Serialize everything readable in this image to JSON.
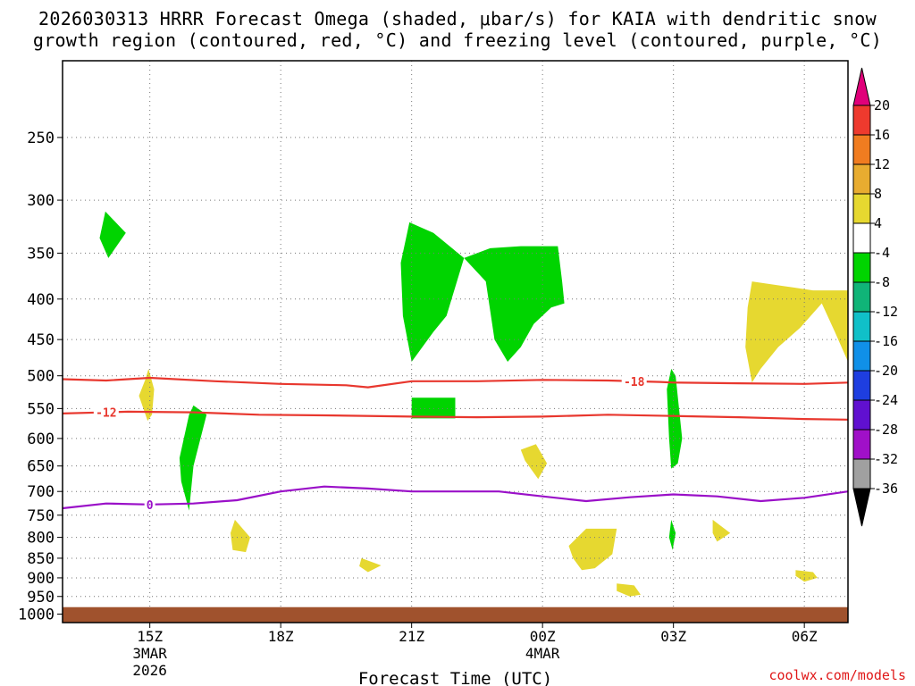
{
  "title_line1": "2026030313 HRRR Forecast Omega (shaded, μbar/s) for KAIA with dendritic snow",
  "title_line2": "growth region (contoured, red, °C) and freezing level (contoured, purple, °C)",
  "credit": "coolwx.com/models",
  "colors": {
    "plot_border": "#000000",
    "dgz_line": "#e8372e",
    "frz_line": "#9a10c8",
    "ground": "#a0522d"
  },
  "chart_data": {
    "type": "contour-time-height",
    "xlabel": "Forecast Time (UTC)",
    "ylabel": "",
    "x_range_hours": [
      13,
      31
    ],
    "x_ticks": [
      {
        "hour": 15,
        "label": "15Z",
        "sub1": "3MAR",
        "sub2": "2026"
      },
      {
        "hour": 18,
        "label": "18Z",
        "sub1": "",
        "sub2": ""
      },
      {
        "hour": 21,
        "label": "21Z",
        "sub1": "",
        "sub2": ""
      },
      {
        "hour": 24,
        "label": "00Z",
        "sub1": "4MAR",
        "sub2": ""
      },
      {
        "hour": 27,
        "label": "03Z",
        "sub1": "",
        "sub2": ""
      },
      {
        "hour": 30,
        "label": "06Z",
        "sub1": "",
        "sub2": ""
      }
    ],
    "y_range_hpa": [
      200,
      1025
    ],
    "y_ticks": [
      250,
      300,
      350,
      400,
      450,
      500,
      550,
      600,
      650,
      700,
      750,
      800,
      850,
      900,
      950,
      1000
    ],
    "ground_level_hpa": 980,
    "colorbar": {
      "labels": [
        "20",
        "16",
        "12",
        "8",
        "4",
        "-4",
        "-8",
        "-12",
        "-16",
        "-20",
        "-24",
        "-28",
        "-32",
        "-36"
      ],
      "colors": [
        "#e0007a",
        "#ee3a2e",
        "#f07c20",
        "#e8ac30",
        "#e6d830",
        "#ffffff",
        "#00d400",
        "#10b478",
        "#10c0c8",
        "#1090e8",
        "#1e3ee0",
        "#6010d0",
        "#a010c8",
        "#a0a0a0",
        "#000000"
      ]
    },
    "contours": [
      {
        "name": "dgz_-18",
        "label": "-18",
        "color": "#e8372e",
        "label_hour": 26.1,
        "points": [
          [
            13.0,
            505
          ],
          [
            14.0,
            507
          ],
          [
            15.0,
            503
          ],
          [
            16.5,
            508
          ],
          [
            18.0,
            512
          ],
          [
            19.5,
            514
          ],
          [
            20.0,
            517
          ],
          [
            21.0,
            508
          ],
          [
            22.5,
            508
          ],
          [
            24.0,
            506
          ],
          [
            25.5,
            507
          ],
          [
            26.7,
            509
          ],
          [
            27.0,
            510
          ],
          [
            28.5,
            511
          ],
          [
            30.0,
            512
          ],
          [
            31.0,
            510
          ]
        ]
      },
      {
        "name": "dgz_-12",
        "label": "-12",
        "color": "#e8372e",
        "label_hour": 14.0,
        "points": [
          [
            13.0,
            558
          ],
          [
            14.5,
            555
          ],
          [
            16.0,
            556
          ],
          [
            17.5,
            560
          ],
          [
            19.0,
            561
          ],
          [
            21.0,
            563
          ],
          [
            22.5,
            564
          ],
          [
            24.0,
            563
          ],
          [
            25.5,
            560
          ],
          [
            27.0,
            562
          ],
          [
            28.5,
            564
          ],
          [
            30.0,
            567
          ],
          [
            31.0,
            568
          ]
        ]
      },
      {
        "name": "freezing_0",
        "label": "0",
        "color": "#9a10c8",
        "label_hour": 15.0,
        "points": [
          [
            13.0,
            735
          ],
          [
            14.0,
            725
          ],
          [
            15.0,
            727
          ],
          [
            16.0,
            725
          ],
          [
            17.0,
            718
          ],
          [
            18.0,
            700
          ],
          [
            19.0,
            690
          ],
          [
            20.0,
            694
          ],
          [
            21.0,
            700
          ],
          [
            22.0,
            700
          ],
          [
            23.0,
            700
          ],
          [
            24.0,
            710
          ],
          [
            25.0,
            720
          ],
          [
            26.0,
            712
          ],
          [
            27.0,
            706
          ],
          [
            28.0,
            710
          ],
          [
            29.0,
            720
          ],
          [
            30.0,
            713
          ],
          [
            31.0,
            700
          ]
        ]
      }
    ],
    "omega_shading": [
      {
        "category": "-8 to -4",
        "color": "#00d400",
        "points": [
          [
            13.98,
            310
          ],
          [
            14.45,
            330
          ],
          [
            14.05,
            355
          ],
          [
            13.85,
            335
          ]
        ]
      },
      {
        "category": "-8 to -4",
        "color": "#00d400",
        "points": [
          [
            16.0,
            545
          ],
          [
            16.3,
            560
          ],
          [
            16.0,
            650
          ],
          [
            15.9,
            740
          ],
          [
            15.72,
            680
          ],
          [
            15.68,
            635
          ],
          [
            15.9,
            560
          ]
        ]
      },
      {
        "category": "-8 to -4",
        "color": "#00d400",
        "points": [
          [
            20.95,
            320
          ],
          [
            21.5,
            330
          ],
          [
            22.2,
            355
          ],
          [
            21.8,
            420
          ],
          [
            21.5,
            440
          ],
          [
            21.0,
            480
          ],
          [
            20.8,
            420
          ],
          [
            20.75,
            360
          ]
        ]
      },
      {
        "category": "-8 to -4",
        "color": "#00d400",
        "points": [
          [
            22.2,
            355
          ],
          [
            22.8,
            345
          ],
          [
            23.5,
            343
          ],
          [
            24.35,
            343
          ],
          [
            24.45,
            380
          ],
          [
            24.5,
            405
          ],
          [
            24.2,
            410
          ],
          [
            23.8,
            430
          ],
          [
            23.5,
            460
          ],
          [
            23.2,
            480
          ],
          [
            22.9,
            450
          ],
          [
            22.7,
            380
          ]
        ]
      },
      {
        "category": "-8 to -4",
        "color": "#00d400",
        "points": [
          [
            21.0,
            533
          ],
          [
            22.0,
            533
          ],
          [
            22.0,
            566
          ],
          [
            21.0,
            566
          ]
        ]
      },
      {
        "category": "-8 to -4",
        "color": "#00d400",
        "points": [
          [
            26.95,
            490
          ],
          [
            27.05,
            500
          ],
          [
            27.2,
            600
          ],
          [
            27.1,
            645
          ],
          [
            26.95,
            655
          ],
          [
            26.9,
            600
          ],
          [
            26.85,
            520
          ]
        ]
      },
      {
        "category": "-8 to -4",
        "color": "#00d400",
        "points": [
          [
            26.95,
            760
          ],
          [
            27.05,
            790
          ],
          [
            26.98,
            830
          ],
          [
            26.9,
            800
          ]
        ]
      },
      {
        "category": "4 to 8",
        "color": "#e6d830",
        "points": [
          [
            14.97,
            490
          ],
          [
            15.1,
            520
          ],
          [
            15.05,
            560
          ],
          [
            14.95,
            570
          ],
          [
            14.75,
            530
          ],
          [
            14.9,
            505
          ]
        ]
      },
      {
        "category": "4 to 8",
        "color": "#e6d830",
        "points": [
          [
            16.95,
            760
          ],
          [
            17.3,
            800
          ],
          [
            17.2,
            835
          ],
          [
            16.9,
            830
          ],
          [
            16.85,
            790
          ]
        ]
      },
      {
        "category": "4 to 8",
        "color": "#e6d830",
        "points": [
          [
            19.85,
            850
          ],
          [
            20.3,
            868
          ],
          [
            20.0,
            885
          ],
          [
            19.8,
            870
          ]
        ]
      },
      {
        "category": "4 to 8",
        "color": "#e6d830",
        "points": [
          [
            23.85,
            610
          ],
          [
            24.1,
            645
          ],
          [
            23.9,
            675
          ],
          [
            23.6,
            640
          ],
          [
            23.5,
            620
          ]
        ]
      },
      {
        "category": "4 to 8",
        "color": "#e6d830",
        "points": [
          [
            25.0,
            780
          ],
          [
            25.7,
            780
          ],
          [
            25.6,
            840
          ],
          [
            25.2,
            875
          ],
          [
            24.9,
            880
          ],
          [
            24.7,
            850
          ],
          [
            24.6,
            820
          ]
        ]
      },
      {
        "category": "4 to 8",
        "color": "#e6d830",
        "points": [
          [
            25.7,
            915
          ],
          [
            26.1,
            920
          ],
          [
            26.25,
            945
          ],
          [
            26.0,
            950
          ],
          [
            25.7,
            935
          ]
        ]
      },
      {
        "category": "4 to 8",
        "color": "#e6d830",
        "points": [
          [
            27.9,
            760
          ],
          [
            28.3,
            790
          ],
          [
            28.0,
            810
          ],
          [
            27.9,
            790
          ]
        ]
      },
      {
        "category": "4 to 8",
        "color": "#e6d830",
        "points": [
          [
            28.8,
            380
          ],
          [
            29.5,
            385
          ],
          [
            30.2,
            390
          ],
          [
            31.0,
            390
          ],
          [
            31.0,
            480
          ],
          [
            30.7,
            440
          ],
          [
            30.4,
            405
          ],
          [
            29.9,
            435
          ],
          [
            29.4,
            460
          ],
          [
            29.0,
            490
          ],
          [
            28.8,
            510
          ],
          [
            28.65,
            460
          ],
          [
            28.7,
            410
          ]
        ]
      },
      {
        "category": "4 to 8",
        "color": "#e6d830",
        "points": [
          [
            29.8,
            880
          ],
          [
            30.2,
            885
          ],
          [
            30.3,
            900
          ],
          [
            30.0,
            910
          ],
          [
            29.8,
            895
          ]
        ]
      }
    ]
  }
}
